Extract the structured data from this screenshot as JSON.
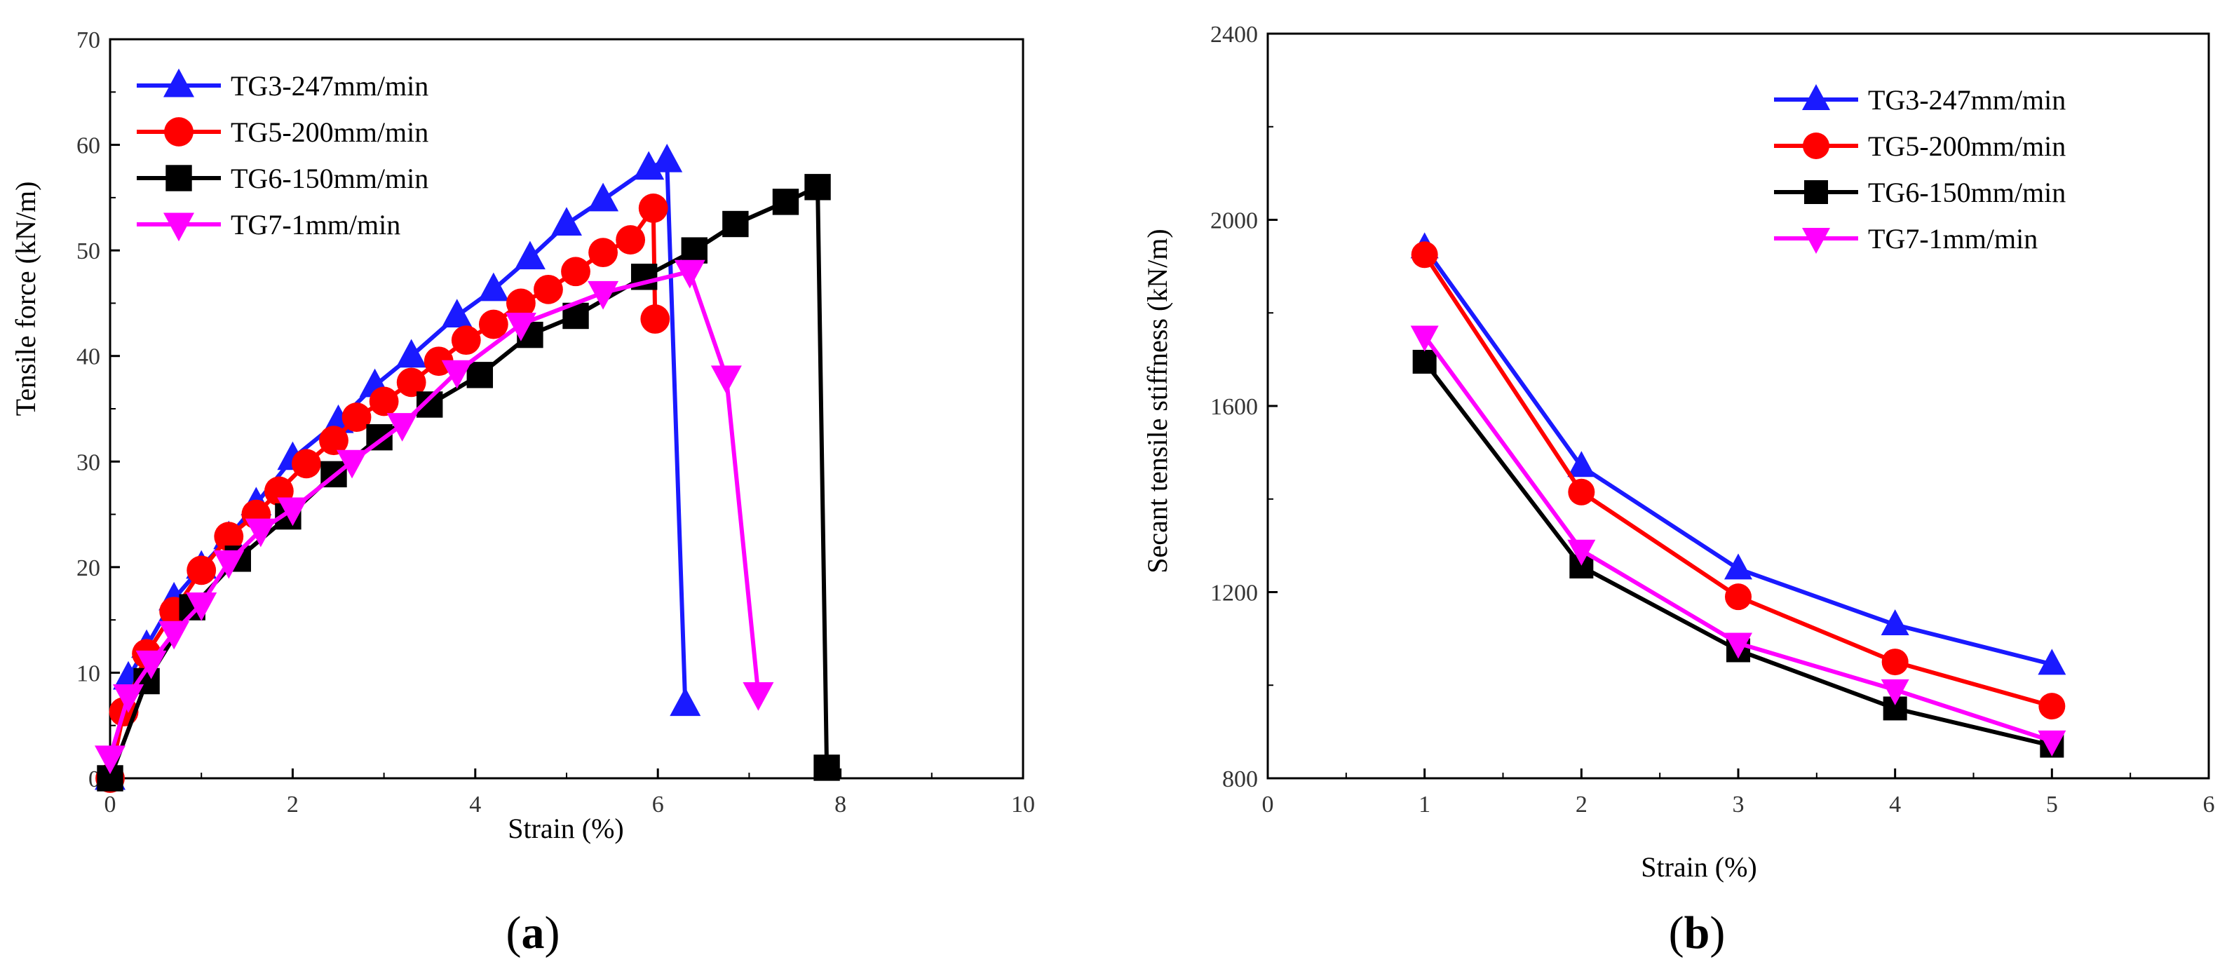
{
  "chart_data": [
    {
      "id": "a",
      "type": "line",
      "panel_label": "a",
      "xlabel": "Strain (%)",
      "ylabel": "Tensile force (kN/m)",
      "xlim": [
        0,
        10
      ],
      "ylim": [
        0,
        70
      ],
      "xticks": [
        0,
        2,
        4,
        6,
        8,
        10
      ],
      "yticks": [
        0,
        10,
        20,
        30,
        40,
        50,
        60,
        70
      ],
      "legend_position": "top-left",
      "series": [
        {
          "name": "TG3-247mm/min",
          "color": "#1a1aff",
          "marker": "triangle-up",
          "x": [
            0.0,
            0.2,
            0.4,
            0.7,
            1.0,
            1.3,
            1.6,
            2.0,
            2.5,
            2.9,
            3.3,
            3.8,
            4.2,
            4.6,
            5.0,
            5.4,
            5.9,
            6.1,
            6.3
          ],
          "y": [
            0.0,
            9.5,
            12.5,
            17.0,
            20.0,
            22.8,
            26.0,
            30.3,
            33.8,
            37.2,
            40.0,
            43.8,
            46.3,
            49.3,
            52.5,
            54.8,
            57.8,
            58.5,
            7.0
          ]
        },
        {
          "name": "TG5-200mm/min",
          "color": "#ff0000",
          "marker": "circle",
          "x": [
            0.0,
            0.15,
            0.4,
            0.7,
            1.0,
            1.3,
            1.6,
            1.85,
            2.15,
            2.45,
            2.7,
            3.0,
            3.3,
            3.6,
            3.9,
            4.2,
            4.5,
            4.8,
            5.1,
            5.4,
            5.7,
            5.95,
            5.97
          ],
          "y": [
            0.0,
            6.3,
            11.8,
            15.8,
            19.7,
            22.9,
            25.0,
            27.2,
            29.8,
            32.0,
            34.2,
            35.7,
            37.5,
            39.5,
            41.5,
            43.0,
            45.0,
            46.3,
            48.0,
            49.8,
            51.0,
            54.0,
            43.5
          ]
        },
        {
          "name": "TG6-150mm/min",
          "color": "#000000",
          "marker": "square",
          "x": [
            0.0,
            0.4,
            0.9,
            1.4,
            1.95,
            2.45,
            2.95,
            3.5,
            4.05,
            4.6,
            5.1,
            5.85,
            6.4,
            6.85,
            7.4,
            7.75,
            7.85
          ],
          "y": [
            0.0,
            9.2,
            16.2,
            20.8,
            24.8,
            28.8,
            32.3,
            35.4,
            38.2,
            42.0,
            43.8,
            47.5,
            50.0,
            52.5,
            54.6,
            56.0,
            1.0
          ]
        },
        {
          "name": "TG7-1mm/min",
          "color": "#ff00ff",
          "marker": "triangle-down",
          "x": [
            0.0,
            0.2,
            0.45,
            0.7,
            1.0,
            1.3,
            1.65,
            2.0,
            2.65,
            3.2,
            3.8,
            4.5,
            5.4,
            6.35,
            6.75,
            7.1
          ],
          "y": [
            2.0,
            7.8,
            11.0,
            13.8,
            16.5,
            20.5,
            23.5,
            25.5,
            30.0,
            33.5,
            38.5,
            43.0,
            46.0,
            48.0,
            38.0,
            8.0
          ]
        }
      ]
    },
    {
      "id": "b",
      "type": "line",
      "panel_label": "b",
      "xlabel": "Strain (%)",
      "ylabel": "Secant tensile stiffness (kN/m)",
      "xlim": [
        0,
        6
      ],
      "ylim": [
        800,
        2400
      ],
      "xticks": [
        0,
        1,
        2,
        3,
        4,
        5,
        6
      ],
      "yticks": [
        800,
        1200,
        1600,
        2000,
        2400
      ],
      "legend_position": "top-right",
      "series": [
        {
          "name": "TG3-247mm/min",
          "color": "#1a1aff",
          "marker": "triangle-up",
          "x": [
            1,
            2,
            3,
            4,
            5
          ],
          "y": [
            1940,
            1470,
            1250,
            1130,
            1045
          ]
        },
        {
          "name": "TG5-200mm/min",
          "color": "#ff0000",
          "marker": "circle",
          "x": [
            1,
            2,
            3,
            4,
            5
          ],
          "y": [
            1925,
            1415,
            1190,
            1050,
            955
          ]
        },
        {
          "name": "TG6-150mm/min",
          "color": "#000000",
          "marker": "square",
          "x": [
            1,
            2,
            3,
            4,
            5
          ],
          "y": [
            1695,
            1255,
            1075,
            950,
            870
          ]
        },
        {
          "name": "TG7-1mm/min",
          "color": "#ff00ff",
          "marker": "triangle-down",
          "x": [
            1,
            2,
            3,
            4,
            5
          ],
          "y": [
            1750,
            1290,
            1090,
            990,
            880
          ]
        }
      ]
    }
  ]
}
